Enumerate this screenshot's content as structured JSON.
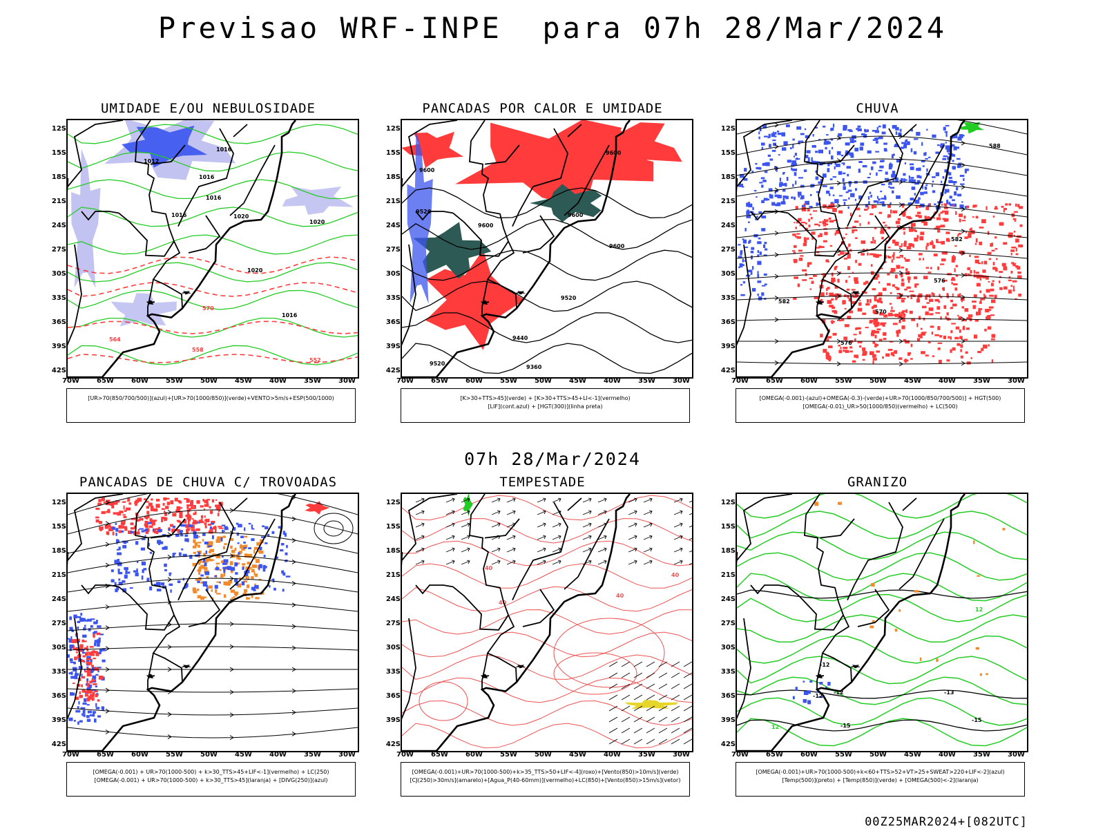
{
  "main_title": "Previsao WRF-INPE  para 07h 28/Mar/2024",
  "mid_date": "07h 28/Mar/2024",
  "footer": "00Z25MAR2024+[082UTC]",
  "axes": {
    "lat_labels": [
      "12S",
      "15S",
      "18S",
      "21S",
      "24S",
      "27S",
      "30S",
      "33S",
      "36S",
      "39S",
      "42S"
    ],
    "lon_labels": [
      "70W",
      "65W",
      "60W",
      "55W",
      "50W",
      "45W",
      "40W",
      "35W",
      "30W"
    ]
  },
  "colors": {
    "blue": "#3b55ee",
    "lavender": "#b8b8f0",
    "green": "#22cc22",
    "red": "#ff3b3b",
    "darkteal": "#2e5a55",
    "orange": "#f28a2a",
    "yellow": "#e6d52a",
    "salmon": "#f05050"
  },
  "panels": [
    {
      "title": "UMIDADE E/OU NEBULOSIDADE",
      "legend_lines": [
        "[UR>70(850/700/500)](azul)+[UR>70(1000/850)](verde)+VENTO>5m/s+ESP(500/1000)"
      ],
      "contour_labels": [
        "1012",
        "1016",
        "1016",
        "1016",
        "1016",
        "1020",
        "1020",
        "1020",
        "1016",
        "570",
        "564",
        "558",
        "552"
      ]
    },
    {
      "title": "PANCADAS POR CALOR E UMIDADE",
      "legend_lines": [
        "[K>30+TTS>45](verde) + [K>30+TTS>45+LI<-1](vermelho)",
        "[LIF](cont.azul) + [HGT(300)](linha preta)"
      ],
      "contour_labels": [
        "9600",
        "9600",
        "9520",
        "9600",
        "9600",
        "9520",
        "9440",
        "9360",
        "9520",
        "9600"
      ]
    },
    {
      "title": "CHUVA",
      "legend_lines": [
        "[OMEGA(-0.001)-(azul)+OMEGA(-0.3)-(verde)+UR>70(1000/850/700/500)] + HGT(500)",
        "[OMEGA(-0.01)_UR>50(1000/850)(vermelho) + LC(500)"
      ],
      "contour_labels": [
        "588",
        "582",
        "576",
        "570",
        "582",
        "576"
      ]
    },
    {
      "title": "PANCADAS DE CHUVA C/ TROVOADAS",
      "legend_lines": [
        "[OMEGA(-0.001) + UR>70(1000-500) + k>30_TTS>45+LIF<-1](vermelho) + LC(250)",
        "[OMEGA(-0.001) + UR>70(1000-500) + k>30_TTS>45](laranja) + [DIVG(250)](azul)"
      ],
      "contour_labels": []
    },
    {
      "title": "TEMPESTADE",
      "legend_lines": [
        "[OMEGA(-0.001)+UR>70(1000-500)+k>35_TTS>50+LIF<-4](roxo)+[Vento(850)>10m/s](verde)",
        "[CJ(250)>30m/s](amarelo)+[Agua_P(40-60mm)](vermelho)+LC(850)+[Vento(850)>15m/s](vetor)"
      ],
      "contour_labels": [
        "40",
        "40",
        "40",
        "40"
      ]
    },
    {
      "title": "GRANIZO",
      "legend_lines": [
        "[OMEGA(-0.001)+UR>70(1000-500)+k<60+TTS>52+VT>25+SWEAT>220+LIF<-2](azul)",
        "[Temp(500)](preto) + [Temp(850)](verde) + [OMEGA(500)<-2](laranja)"
      ],
      "contour_labels": [
        "-12",
        "-12",
        "-15",
        "-13",
        "-12",
        "-15",
        "12",
        "12"
      ]
    }
  ]
}
